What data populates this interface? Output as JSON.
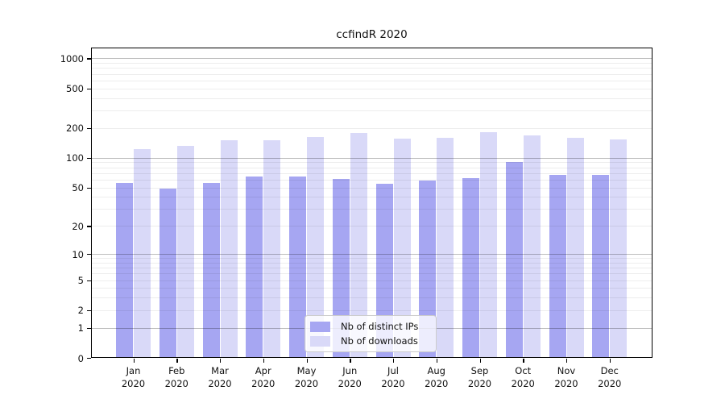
{
  "chart_data": {
    "type": "bar",
    "title": "ccfindR 2020",
    "scale": "log1p",
    "categories": [
      "Jan",
      "Feb",
      "Mar",
      "Apr",
      "May",
      "Jun",
      "Jul",
      "Aug",
      "Sep",
      "Oct",
      "Nov",
      "Dec"
    ],
    "category_year": "2020",
    "series": [
      {
        "name": "Nb of distinct IPs",
        "color": "#a6a6f2",
        "values": [
          55,
          49,
          55,
          65,
          64,
          61,
          54,
          59,
          62,
          90,
          67,
          67
        ]
      },
      {
        "name": "Nb of downloads",
        "color": "#d9d9f8",
        "values": [
          123,
          133,
          151,
          151,
          161,
          177,
          155,
          158,
          181,
          168,
          158,
          154
        ]
      }
    ],
    "y_ticks": [
      1000,
      500,
      200,
      100,
      50,
      20,
      10,
      5,
      2,
      1,
      0
    ],
    "y_major_gridlines": [
      1,
      10,
      100,
      1000
    ],
    "y_minor_gridlines": [
      2,
      3,
      4,
      5,
      6,
      7,
      8,
      9,
      20,
      30,
      40,
      50,
      60,
      70,
      80,
      90,
      200,
      300,
      400,
      500,
      600,
      700,
      800,
      900
    ],
    "ylim": [
      0,
      1280
    ],
    "grid": true,
    "legend_position": "lower center inside",
    "xlabel": "",
    "ylabel": ""
  }
}
